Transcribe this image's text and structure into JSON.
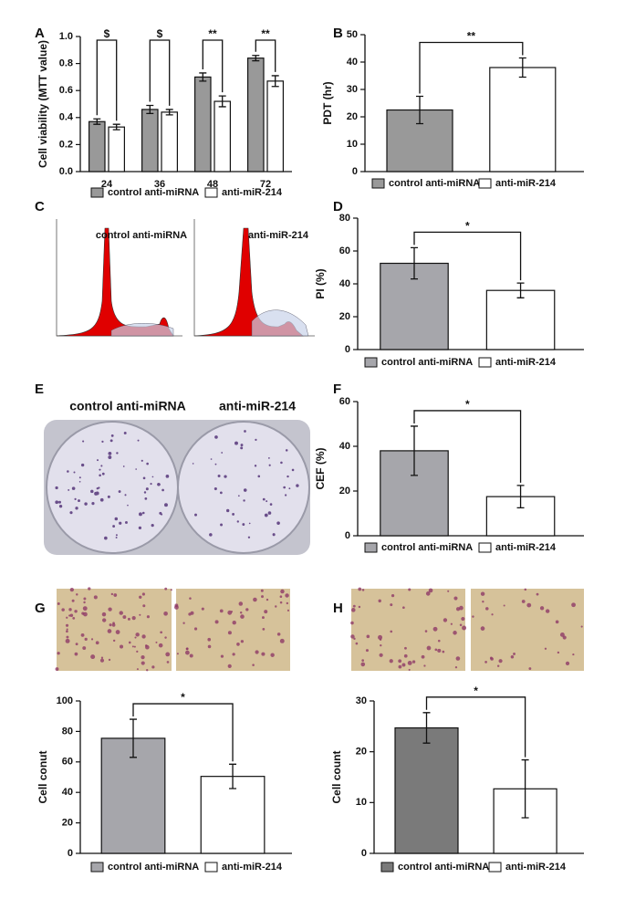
{
  "chart_data": [
    {
      "type": "bar",
      "label": "A",
      "ylabel": "Cell viability (MTT value)",
      "categories": [
        "24",
        "36",
        "48",
        "72"
      ],
      "series": [
        {
          "name": "control anti-miRNA",
          "color": "#999999",
          "values": [
            0.37,
            0.46,
            0.7,
            0.84
          ],
          "errors": [
            0.02,
            0.03,
            0.03,
            0.02
          ]
        },
        {
          "name": "anti-miR-214",
          "color": "#ffffff",
          "values": [
            0.33,
            0.44,
            0.52,
            0.67
          ],
          "errors": [
            0.02,
            0.02,
            0.04,
            0.04
          ]
        }
      ],
      "ylim": [
        0,
        1
      ],
      "yticks": [
        {
          "value": 0,
          "label": "0.0"
        },
        {
          "value": 0.2,
          "label": "0.2"
        },
        {
          "value": 0.4,
          "label": "0.4"
        },
        {
          "value": 0.6,
          "label": "0.6"
        },
        {
          "value": 0.8,
          "label": "0.8"
        },
        {
          "value": 1,
          "label": "1.0"
        }
      ],
      "annotations": [
        "$",
        "$",
        "**",
        "**"
      ]
    },
    {
      "type": "bar",
      "label": "B",
      "ylabel": "PDT (hr)",
      "series": [
        {
          "name": "control anti-miRNA",
          "color": "#999999",
          "values": [
            22.5
          ],
          "errors": [
            5
          ]
        },
        {
          "name": "anti-miR-214",
          "color": "#ffffff",
          "values": [
            38
          ],
          "errors": [
            3.5
          ]
        }
      ],
      "ylim": [
        0,
        50
      ],
      "yticks": [
        0,
        10,
        20,
        30,
        40,
        50
      ],
      "annotation": "**"
    },
    {
      "type": "bar",
      "label": "D",
      "ylabel": "PI (%)",
      "series": [
        {
          "name": "control anti-miRNA",
          "color": "#a6a6ab",
          "values": [
            52.5
          ],
          "errors": [
            9.5
          ]
        },
        {
          "name": "anti-miR-214",
          "color": "#ffffff",
          "values": [
            36
          ],
          "errors": [
            4.5
          ]
        }
      ],
      "ylim": [
        0,
        80
      ],
      "yticks": [
        0,
        20,
        40,
        60,
        80
      ],
      "annotation": "*"
    },
    {
      "type": "bar",
      "label": "F",
      "ylabel": "CEF (%)",
      "series": [
        {
          "name": "control anti-miRNA",
          "color": "#a6a6ab",
          "values": [
            38
          ],
          "errors": [
            11
          ]
        },
        {
          "name": "anti-miR-214",
          "color": "#ffffff",
          "values": [
            17.5
          ],
          "errors": [
            5
          ]
        }
      ],
      "ylim": [
        0,
        60
      ],
      "yticks": [
        0,
        20,
        40,
        60
      ],
      "annotation": "*"
    },
    {
      "type": "bar",
      "label": "G",
      "ylabel": "Cell conut",
      "series": [
        {
          "name": "control anti-miRNA",
          "color": "#a6a6ab",
          "values": [
            75.5
          ],
          "errors": [
            12.5
          ]
        },
        {
          "name": "anti-miR-214",
          "color": "#ffffff",
          "values": [
            50.5
          ],
          "errors": [
            8
          ]
        }
      ],
      "ylim": [
        0,
        100
      ],
      "yticks": [
        0,
        20,
        40,
        60,
        80,
        100
      ],
      "annotation": "*"
    },
    {
      "type": "bar",
      "label": "H",
      "ylabel": "Cell count",
      "series": [
        {
          "name": "control anti-miRNA",
          "color": "#7a7a7a",
          "values": [
            24.7
          ],
          "errors": [
            3
          ]
        },
        {
          "name": "anti-miR-214",
          "color": "#ffffff",
          "values": [
            12.7
          ],
          "errors": [
            5.7
          ]
        }
      ],
      "ylim": [
        0,
        30
      ],
      "yticks": [
        0,
        10,
        20,
        30
      ],
      "annotation": "*"
    }
  ],
  "flow_cytometry": {
    "label": "C",
    "labels": [
      "control anti-miRNA",
      "anti-miR-214"
    ]
  },
  "colony_photo": {
    "label": "E",
    "labels": [
      "control anti-miRNA",
      "anti-miR-214"
    ]
  }
}
